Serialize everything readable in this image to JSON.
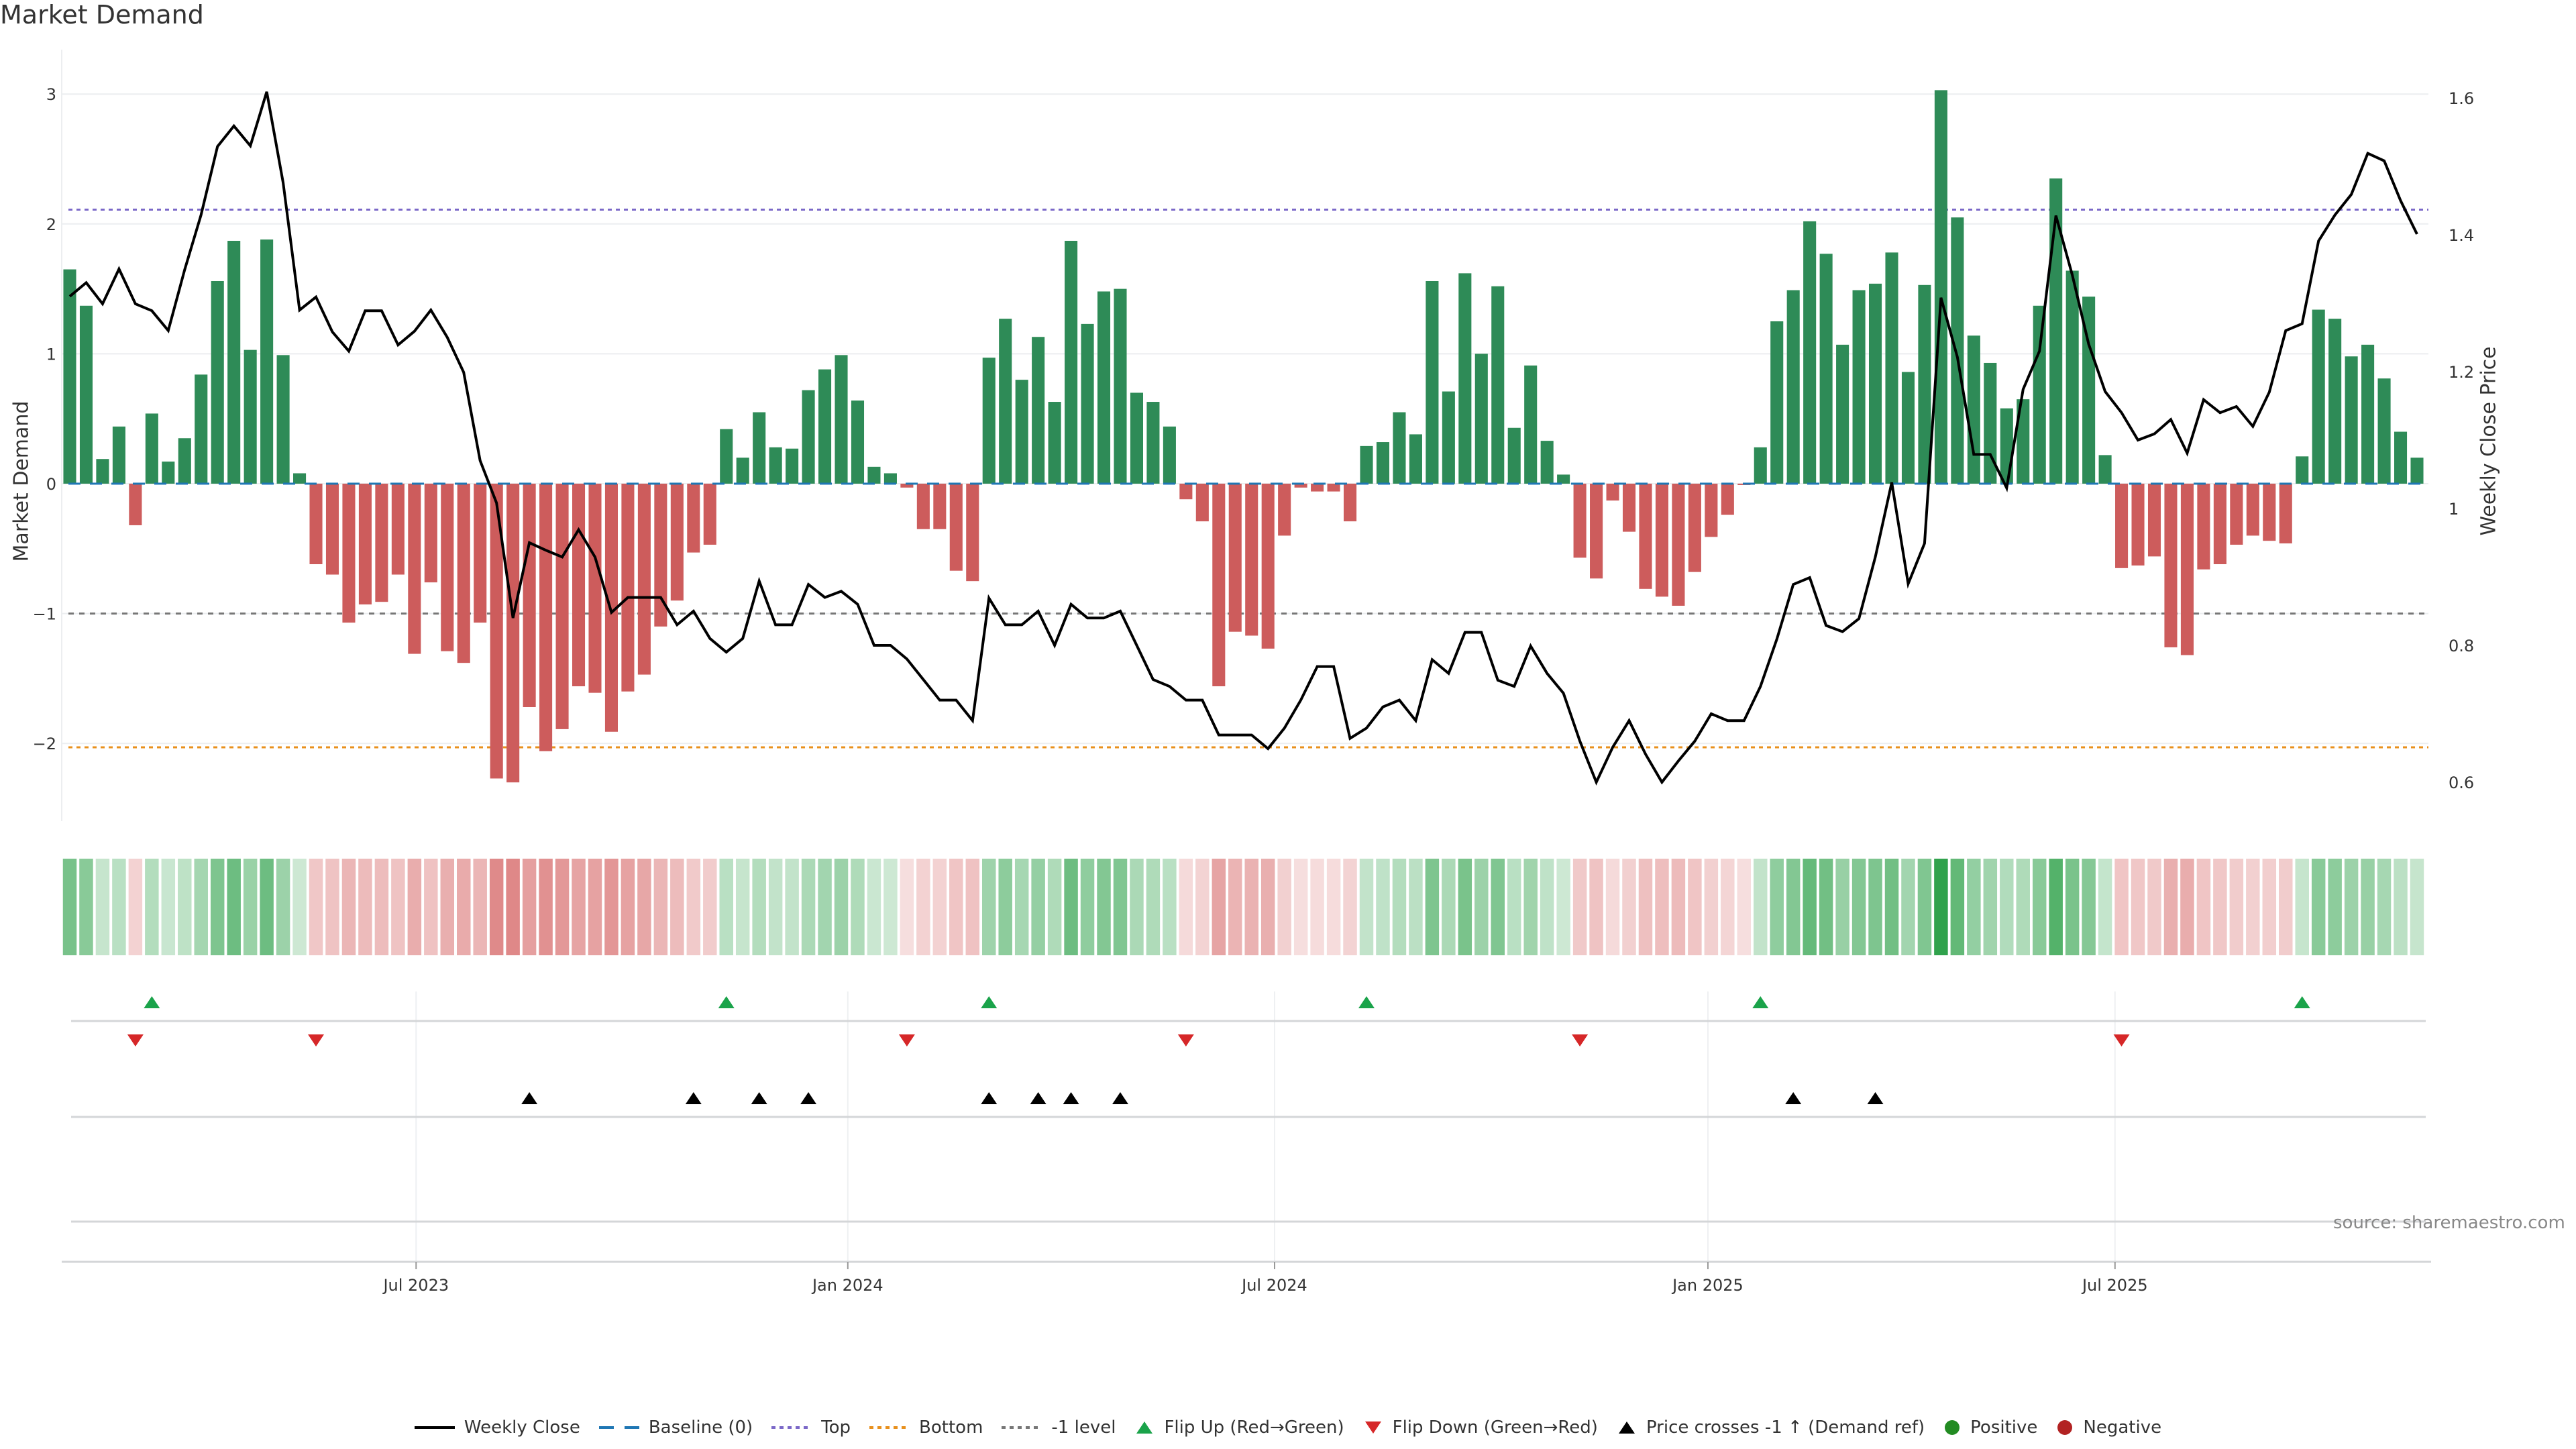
{
  "title": "Market Demand",
  "source": "source: sharemaestro.com",
  "chart_data": {
    "type": "bar",
    "title": "Market Demand",
    "ylabel": "Market Demand",
    "y2label": "Weekly Close Price",
    "xlabel": "",
    "ylim": [
      -2.6,
      3.3
    ],
    "y2lim": [
      0.55,
      1.65
    ],
    "yticks": [
      {
        "v": 3,
        "label": "3"
      },
      {
        "v": 2,
        "label": "2"
      },
      {
        "v": 1,
        "label": "1"
      },
      {
        "v": 0,
        "label": "0"
      },
      {
        "v": -1,
        "label": "−1"
      },
      {
        "v": -2,
        "label": "−2"
      }
    ],
    "y2ticks": [
      {
        "v": 1.6,
        "label": "1.6"
      },
      {
        "v": 1.4,
        "label": "1.4"
      },
      {
        "v": 1.2,
        "label": "1.2"
      },
      {
        "v": 1.0,
        "label": "1"
      },
      {
        "v": 0.8,
        "label": "0.8"
      },
      {
        "v": 0.6,
        "label": "0.6"
      }
    ],
    "xticks": [
      {
        "week": 22.1,
        "label": "Jul 2023"
      },
      {
        "week": 48.4,
        "label": "Jan 2024"
      },
      {
        "week": 74.4,
        "label": "Jul 2024"
      },
      {
        "week": 100.8,
        "label": "Jan 2025"
      },
      {
        "week": 125.6,
        "label": "Jul 2025"
      }
    ],
    "grid": true,
    "reference_lines": {
      "top": 2.11,
      "baseline": 0,
      "minus_one": -1,
      "bottom": -2.03
    },
    "colors": {
      "positive_bar": "#2e8b57",
      "negative_bar": "#cd5c5c",
      "price_line": "#000000",
      "baseline": "#1f77b4",
      "top": "#7b68c8",
      "bottom": "#e8901c",
      "minus_one": "#777777",
      "flip_up": "#1aa34a",
      "flip_down": "#d62728",
      "price_cross": "#000000",
      "heat_positive": "#2ca048",
      "heat_negative": "#d05050"
    },
    "demand": [
      1.65,
      1.37,
      0.19,
      0.44,
      -0.32,
      0.54,
      0.17,
      0.35,
      0.84,
      1.56,
      1.87,
      1.03,
      1.88,
      0.99,
      0.08,
      -0.62,
      -0.7,
      -1.07,
      -0.93,
      -0.91,
      -0.7,
      -1.31,
      -0.76,
      -1.29,
      -1.38,
      -1.07,
      -2.27,
      -2.3,
      -1.72,
      -2.06,
      -1.89,
      -1.56,
      -1.61,
      -1.91,
      -1.6,
      -1.47,
      -1.1,
      -0.9,
      -0.53,
      -0.47,
      0.42,
      0.2,
      0.55,
      0.28,
      0.27,
      0.72,
      0.88,
      0.99,
      0.64,
      0.13,
      0.08,
      -0.03,
      -0.35,
      -0.35,
      -0.67,
      -0.75,
      0.97,
      1.27,
      0.8,
      1.13,
      0.63,
      1.87,
      1.23,
      1.48,
      1.5,
      0.7,
      0.63,
      0.44,
      -0.12,
      -0.29,
      -1.56,
      -1.14,
      -1.17,
      -1.27,
      -0.4,
      -0.03,
      -0.06,
      -0.06,
      -0.29,
      0.29,
      0.32,
      0.55,
      0.38,
      1.56,
      0.71,
      1.62,
      1.0,
      1.52,
      0.43,
      0.91,
      0.33,
      0.07,
      -0.57,
      -0.73,
      -0.13,
      -0.37,
      -0.81,
      -0.87,
      -0.94,
      -0.68,
      -0.41,
      -0.24,
      -0.01,
      0.28,
      1.25,
      1.49,
      2.02,
      1.77,
      1.07,
      1.49,
      1.54,
      1.78,
      0.86,
      1.53,
      3.03,
      2.05,
      1.14,
      0.93,
      0.58,
      0.65,
      1.37,
      2.35,
      1.64,
      1.44,
      0.22,
      -0.65,
      -0.63,
      -0.56,
      -1.26,
      -1.32,
      -0.66,
      -0.62,
      -0.47,
      -0.4,
      -0.44,
      -0.46,
      0.21,
      1.34,
      1.27,
      0.98,
      1.07,
      0.81,
      0.4,
      0.2
    ],
    "weekly_close": [
      1.31,
      1.33,
      1.299,
      1.35,
      1.299,
      1.289,
      1.26,
      1.349,
      1.429,
      1.529,
      1.559,
      1.53,
      1.609,
      1.476,
      1.29,
      1.309,
      1.258,
      1.23,
      1.289,
      1.289,
      1.239,
      1.259,
      1.29,
      1.25,
      1.199,
      1.07,
      1.008,
      0.84,
      0.95,
      0.939,
      0.929,
      0.969,
      0.929,
      0.848,
      0.87,
      0.87,
      0.87,
      0.83,
      0.85,
      0.81,
      0.79,
      0.81,
      0.894,
      0.83,
      0.83,
      0.889,
      0.87,
      0.879,
      0.86,
      0.8,
      0.8,
      0.78,
      0.75,
      0.72,
      0.72,
      0.69,
      0.869,
      0.83,
      0.83,
      0.85,
      0.8,
      0.86,
      0.84,
      0.84,
      0.85,
      0.8,
      0.75,
      0.74,
      0.72,
      0.72,
      0.669,
      0.669,
      0.669,
      0.649,
      0.679,
      0.72,
      0.769,
      0.769,
      0.664,
      0.679,
      0.71,
      0.72,
      0.69,
      0.779,
      0.759,
      0.819,
      0.819,
      0.749,
      0.74,
      0.799,
      0.759,
      0.73,
      0.66,
      0.6,
      0.651,
      0.69,
      0.641,
      0.6,
      0.631,
      0.66,
      0.7,
      0.69,
      0.69,
      0.74,
      0.809,
      0.889,
      0.899,
      0.829,
      0.82,
      0.839,
      0.929,
      1.038,
      0.89,
      0.949,
      1.308,
      1.221,
      1.079,
      1.079,
      1.03,
      1.174,
      1.23,
      1.428,
      1.341,
      1.24,
      1.171,
      1.14,
      1.1,
      1.109,
      1.13,
      1.081,
      1.159,
      1.14,
      1.149,
      1.12,
      1.17,
      1.26,
      1.27,
      1.391,
      1.429,
      1.459,
      1.519,
      1.508,
      1.45,
      1.401
    ],
    "flip_up_weeks": [
      6,
      41,
      57,
      80,
      104,
      137
    ],
    "flip_down_weeks": [
      5,
      16,
      52,
      69,
      93,
      126
    ],
    "price_cross_weeks": [
      29,
      39,
      43,
      46,
      57,
      60,
      62,
      65,
      106,
      111
    ],
    "legend": [
      {
        "key": "weekly_close",
        "label": "Weekly Close",
        "symbol": "solid-line"
      },
      {
        "key": "baseline",
        "label": "Baseline (0)",
        "symbol": "dash-line"
      },
      {
        "key": "top",
        "label": "Top",
        "symbol": "dot-line"
      },
      {
        "key": "bottom",
        "label": "Bottom",
        "symbol": "dot-line"
      },
      {
        "key": "minus_one",
        "label": "-1 level",
        "symbol": "dot-line"
      },
      {
        "key": "flip_up",
        "label": "Flip Up (Red→Green)",
        "symbol": "triangle-up"
      },
      {
        "key": "flip_down",
        "label": "Flip Down (Green→Red)",
        "symbol": "triangle-down"
      },
      {
        "key": "price_cross",
        "label": "Price crosses -1 ↑ (Demand ref)",
        "symbol": "triangle-up"
      },
      {
        "key": "positive",
        "label": "Positive",
        "symbol": "circle"
      },
      {
        "key": "negative",
        "label": "Negative",
        "symbol": "circle"
      }
    ],
    "legend_position": "bottom"
  }
}
